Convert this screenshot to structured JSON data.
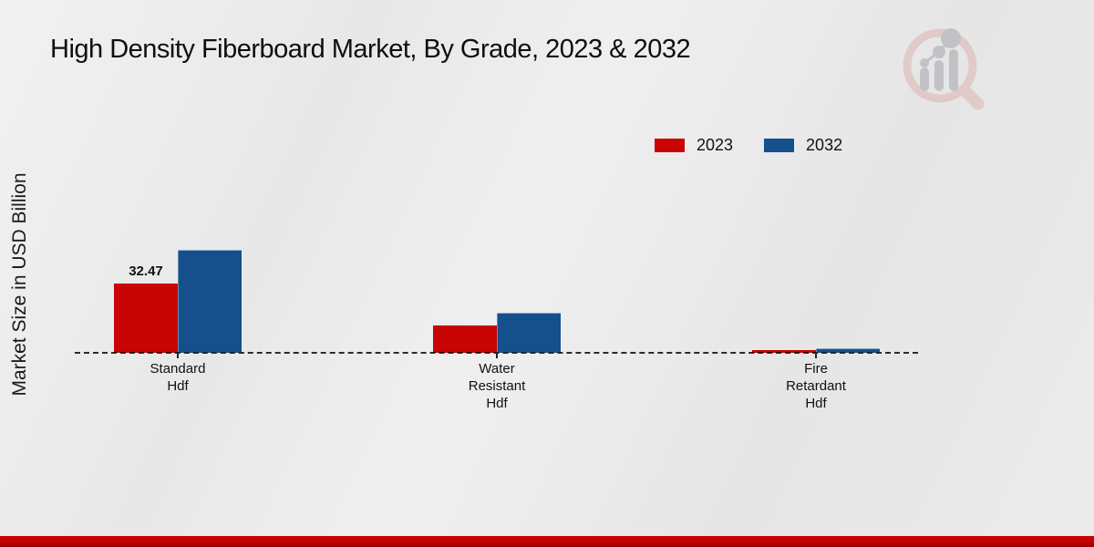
{
  "title": "High Density Fiberboard Market, By Grade, 2023 & 2032",
  "y_axis_label": "Market Size in USD Billion",
  "legend": {
    "items": [
      {
        "label": "2023",
        "color": "#c80404"
      },
      {
        "label": "2032",
        "color": "#154f8c"
      }
    ]
  },
  "chart_data": {
    "type": "bar",
    "title": "High Density Fiberboard Market, By Grade, 2023 & 2032",
    "ylabel": "Market Size in USD Billion",
    "xlabel": "",
    "categories": [
      "Standard\nHdf",
      "Water\nResistant\nHdf",
      "Fire\nRetardant\nHdf"
    ],
    "series": [
      {
        "name": "2023",
        "color": "#c80404",
        "values": [
          32.47,
          12.8,
          1.2
        ]
      },
      {
        "name": "2032",
        "color": "#154f8c",
        "values": [
          48.2,
          18.8,
          2.1
        ]
      }
    ],
    "value_labels": [
      {
        "series": "2023",
        "category_index": 0,
        "text": "32.47"
      }
    ],
    "ylim": [
      0,
      60
    ],
    "y_axis_ticks_visible": false,
    "grid": false,
    "baseline_style": "dashed",
    "legend_position": "top-right"
  },
  "footer": {
    "accent_color": "#c20101"
  },
  "watermark_icon": "magnifier-bar-chart-logo"
}
